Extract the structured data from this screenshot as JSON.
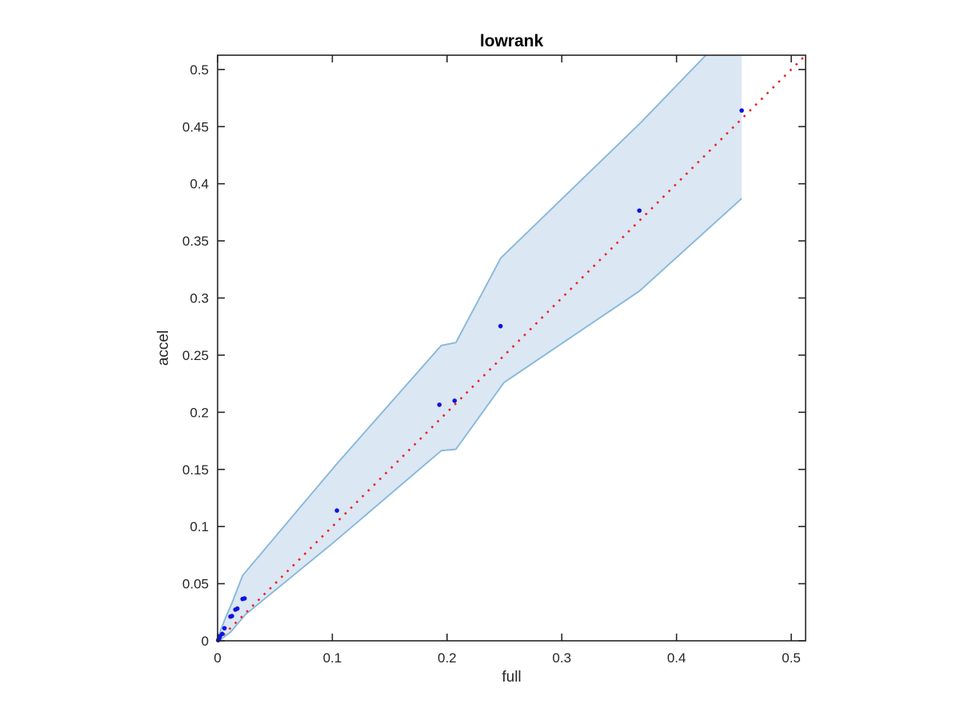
{
  "chart_data": {
    "type": "scatter",
    "title": "lowrank",
    "xlabel": "full",
    "ylabel": "accel",
    "xlim": [
      0,
      0.5125
    ],
    "ylim": [
      0,
      0.5125
    ],
    "grid": false,
    "legend": "none",
    "xticks": {
      "values": [
        0,
        0.1,
        0.2,
        0.3,
        0.4,
        0.5
      ],
      "labels": [
        "0",
        "0.1",
        "0.2",
        "0.3",
        "0.4",
        "0.5"
      ]
    },
    "yticks": {
      "values": [
        0,
        0.05,
        0.1,
        0.15,
        0.2,
        0.25,
        0.3,
        0.35,
        0.4,
        0.45,
        0.5
      ],
      "labels": [
        "0",
        "0.05",
        "0.1",
        "0.15",
        "0.2",
        "0.25",
        "0.3",
        "0.35",
        "0.4",
        "0.45",
        "0.5"
      ]
    },
    "series": [
      {
        "name": "scatter-points",
        "type": "scatter",
        "points": [
          [
            0.0005,
            0.0005
          ],
          [
            0.001,
            0.0014
          ],
          [
            0.0015,
            0.0026
          ],
          [
            0.002,
            0.004
          ],
          [
            0.004,
            0.006
          ],
          [
            0.006,
            0.011
          ],
          [
            0.0112,
            0.0212
          ],
          [
            0.0125,
            0.0217
          ],
          [
            0.0155,
            0.0273
          ],
          [
            0.0172,
            0.0282
          ],
          [
            0.0218,
            0.0366
          ],
          [
            0.0235,
            0.0371
          ],
          [
            0.104,
            0.114
          ],
          [
            0.1933,
            0.2066
          ],
          [
            0.2066,
            0.2101
          ],
          [
            0.2466,
            0.2754
          ],
          [
            0.3676,
            0.3765
          ],
          [
            0.4568,
            0.4641
          ]
        ]
      },
      {
        "name": "identity-line",
        "type": "line",
        "style": "dotted",
        "points": [
          [
            0,
            0
          ],
          [
            0.5125,
            0.5125
          ]
        ]
      },
      {
        "name": "confidence-band",
        "type": "band",
        "upper": [
          [
            0,
            0.002
          ],
          [
            0.006,
            0.018
          ],
          [
            0.0125,
            0.033
          ],
          [
            0.0218,
            0.0572
          ],
          [
            0.104,
            0.155
          ],
          [
            0.195,
            0.2585
          ],
          [
            0.2077,
            0.261
          ],
          [
            0.2468,
            0.335
          ],
          [
            0.3693,
            0.454
          ],
          [
            0.4568,
            0.545
          ]
        ],
        "lower": [
          [
            0,
            -0.001
          ],
          [
            0.0114,
            0.0077
          ],
          [
            0.0242,
            0.0229
          ],
          [
            0.1009,
            0.0859
          ],
          [
            0.195,
            0.1664
          ],
          [
            0.2077,
            0.1676
          ],
          [
            0.2496,
            0.226
          ],
          [
            0.3676,
            0.306
          ],
          [
            0.4568,
            0.3871
          ]
        ]
      }
    ],
    "colors": {
      "scatter": "#1212e0",
      "identity_line": "#ee2222",
      "band_fill": "#dbe7f3",
      "band_edge": "#88b8da",
      "axis": "#262626",
      "tick_label": "#262626",
      "background": "#ffffff"
    }
  }
}
